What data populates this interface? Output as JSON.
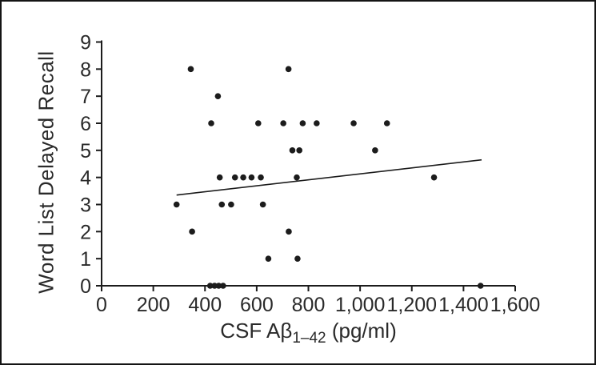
{
  "figure": {
    "background": "#ffffff",
    "border_color": "#141414",
    "text_color": "#2a2a2a",
    "marker_color": "#1c1c1c"
  },
  "chart_data": {
    "type": "scatter",
    "title": "",
    "xlabel": "CSF Aβ1–42 (pg/ml)",
    "xlabel_parts": {
      "prefix": "CSF Aβ",
      "subscript": "1–42",
      "suffix": " (pg/ml)"
    },
    "ylabel": "Word List Delayed Recall",
    "xlim": [
      0,
      1600
    ],
    "ylim": [
      0,
      9
    ],
    "grid": false,
    "legend": null,
    "x_ticks": [
      0,
      200,
      400,
      600,
      800,
      1000,
      1200,
      1400,
      1600
    ],
    "x_tick_labels": [
      "0",
      "200",
      "400",
      "600",
      "800",
      "1,000",
      "1,200",
      "1,400",
      "1,600"
    ],
    "y_ticks": [
      0,
      1,
      2,
      3,
      4,
      5,
      6,
      7,
      8,
      9
    ],
    "y_tick_labels": [
      "0",
      "1",
      "2",
      "3",
      "4",
      "5",
      "6",
      "7",
      "8",
      "9"
    ],
    "points": [
      {
        "x": 345,
        "y": 8
      },
      {
        "x": 723,
        "y": 8
      },
      {
        "x": 450,
        "y": 7
      },
      {
        "x": 424,
        "y": 6
      },
      {
        "x": 606,
        "y": 6
      },
      {
        "x": 703,
        "y": 6
      },
      {
        "x": 778,
        "y": 6
      },
      {
        "x": 832,
        "y": 6
      },
      {
        "x": 975,
        "y": 6
      },
      {
        "x": 1104,
        "y": 6
      },
      {
        "x": 738,
        "y": 5
      },
      {
        "x": 765,
        "y": 5
      },
      {
        "x": 1058,
        "y": 5
      },
      {
        "x": 457,
        "y": 4
      },
      {
        "x": 516,
        "y": 4
      },
      {
        "x": 548,
        "y": 4
      },
      {
        "x": 580,
        "y": 4
      },
      {
        "x": 616,
        "y": 4
      },
      {
        "x": 755,
        "y": 4
      },
      {
        "x": 1286,
        "y": 4
      },
      {
        "x": 290,
        "y": 3
      },
      {
        "x": 465,
        "y": 3
      },
      {
        "x": 501,
        "y": 3
      },
      {
        "x": 624,
        "y": 3
      },
      {
        "x": 350,
        "y": 2
      },
      {
        "x": 724,
        "y": 2
      },
      {
        "x": 645,
        "y": 1
      },
      {
        "x": 758,
        "y": 1
      },
      {
        "x": 420,
        "y": 0
      },
      {
        "x": 437,
        "y": 0
      },
      {
        "x": 453,
        "y": 0
      },
      {
        "x": 470,
        "y": 0
      },
      {
        "x": 1466,
        "y": 0
      }
    ],
    "trend_line": {
      "x1": 290,
      "y1": 3.35,
      "x2": 1470,
      "y2": 4.65
    }
  }
}
